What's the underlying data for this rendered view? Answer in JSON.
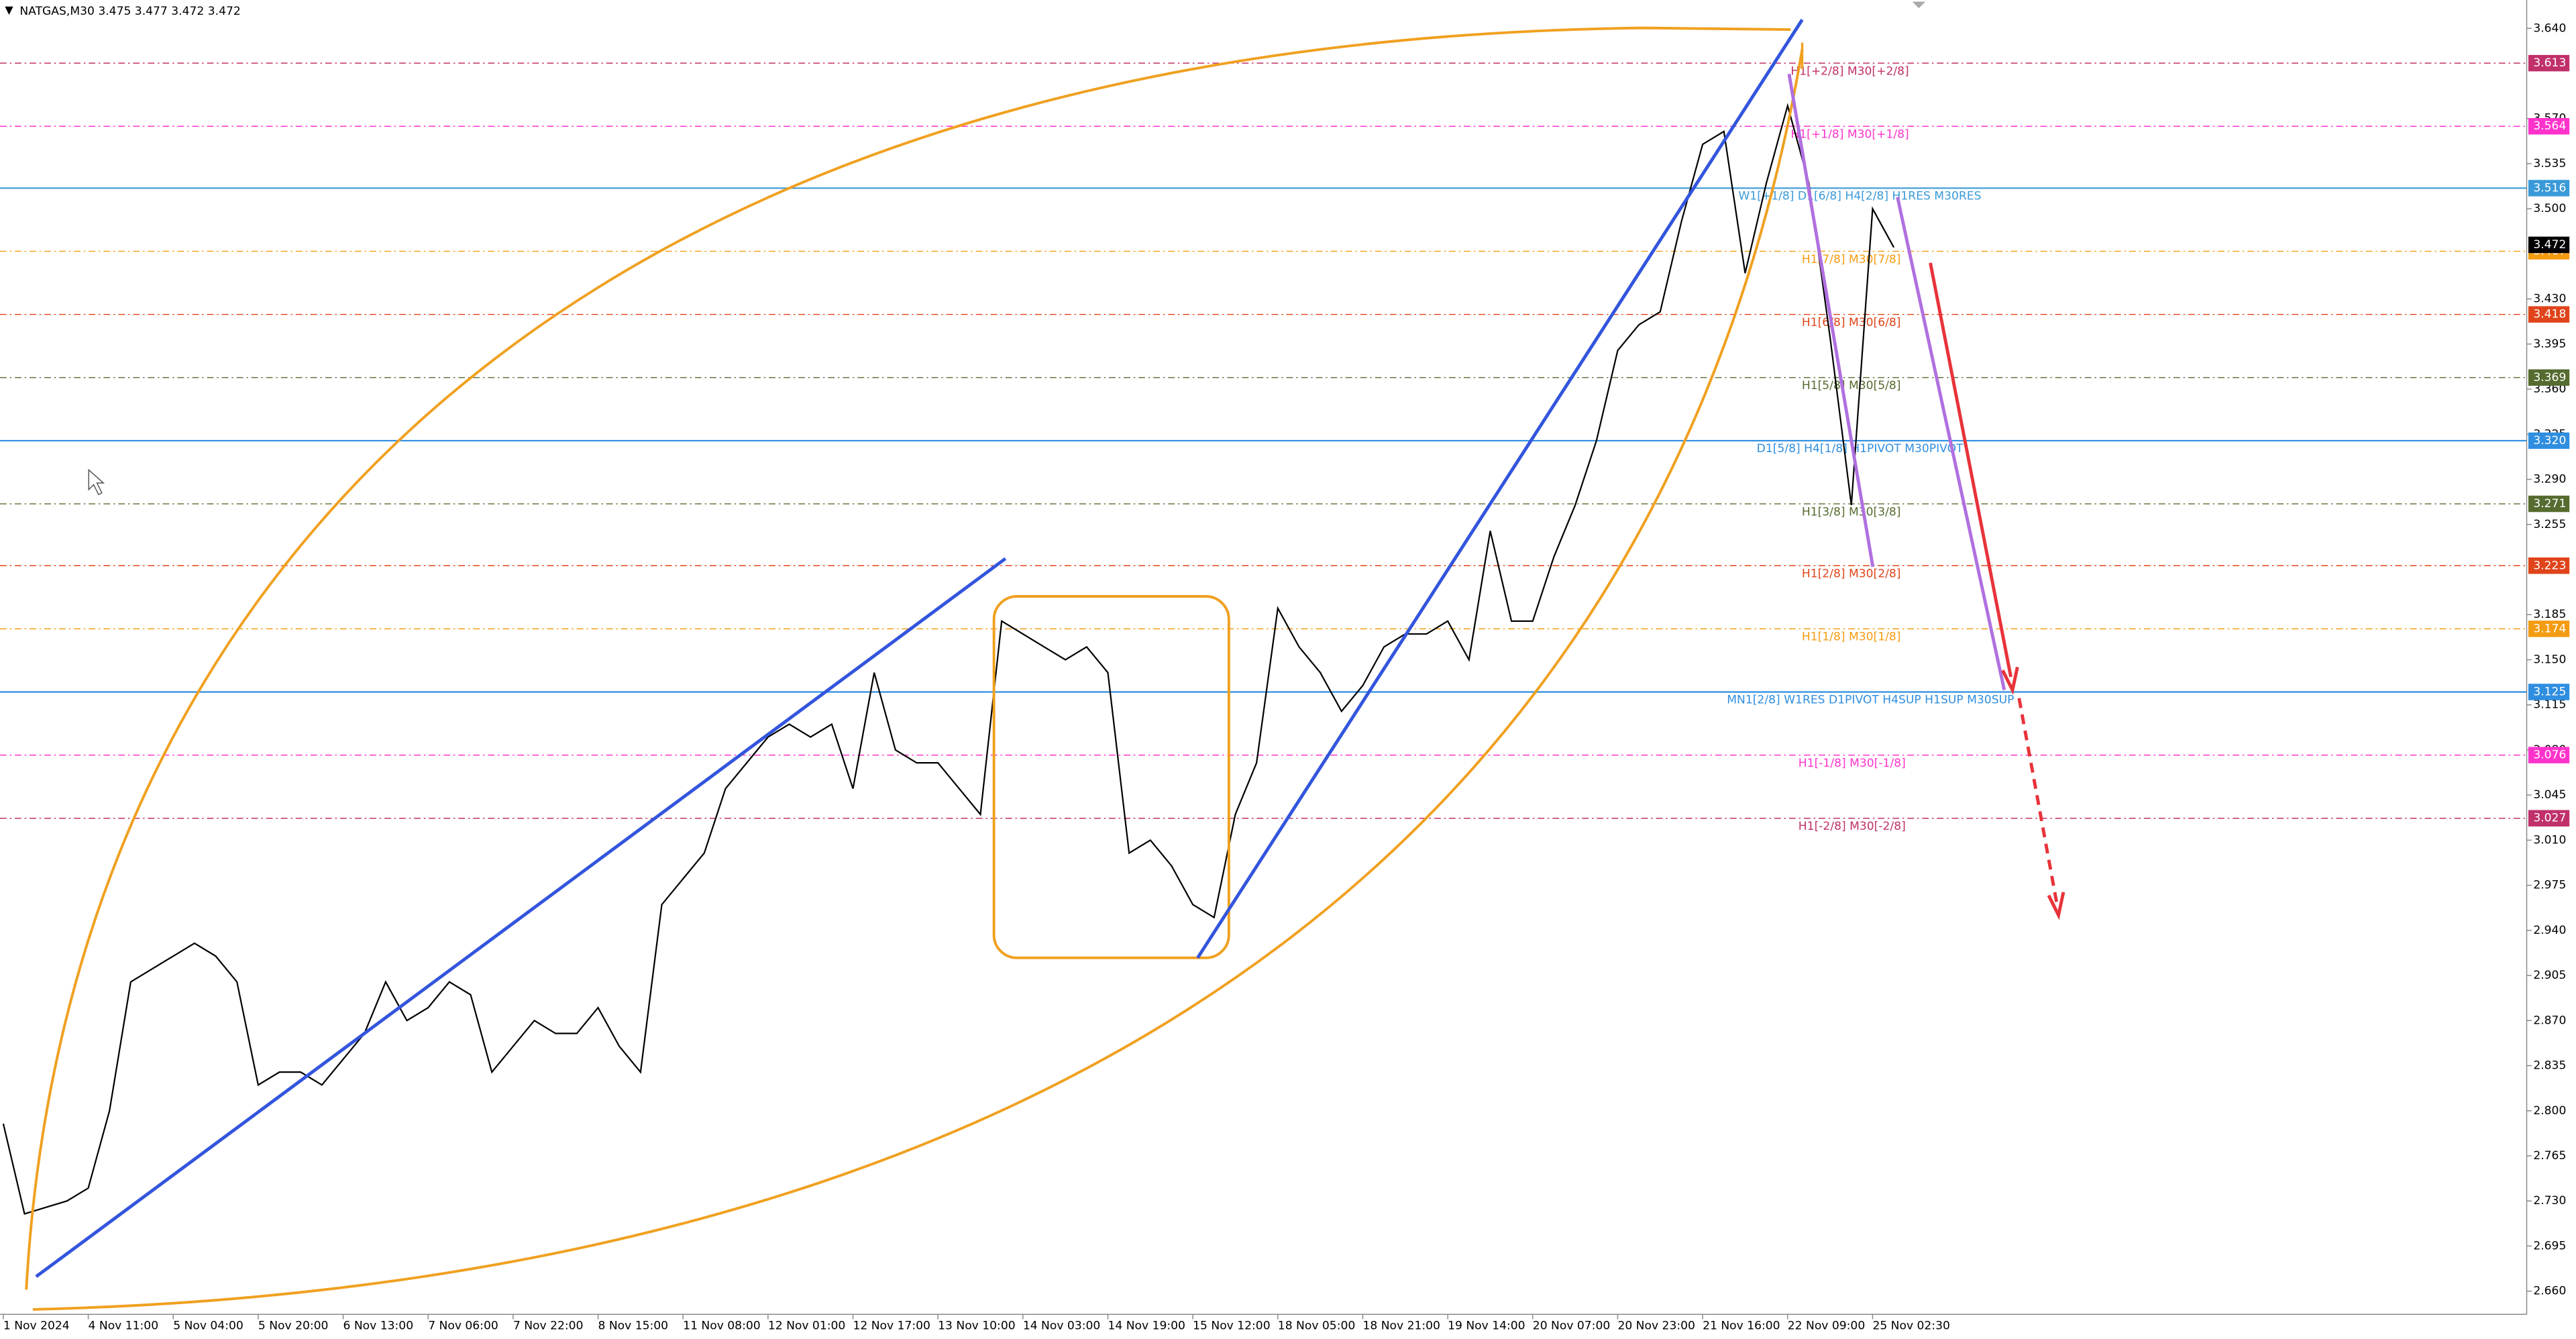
{
  "chart_data": {
    "type": "line",
    "title": "NATGAS,M30  3.475 3.477 3.472 3.472",
    "categories": [
      "1 Nov 2024",
      null,
      null,
      null,
      "4 Nov 11:00",
      null,
      null,
      null,
      "5 Nov 04:00",
      null,
      null,
      null,
      "5 Nov 20:00",
      null,
      null,
      null,
      "6 Nov 13:00",
      null,
      null,
      null,
      "7 Nov 06:00",
      null,
      null,
      null,
      "7 Nov 22:00",
      null,
      null,
      null,
      "8 Nov 15:00",
      null,
      null,
      null,
      "11 Nov 08:00",
      null,
      null,
      null,
      "12 Nov 01:00",
      null,
      null,
      null,
      "12 Nov 17:00",
      null,
      null,
      null,
      "13 Nov 10:00",
      null,
      null,
      null,
      "14 Nov 03:00",
      null,
      null,
      null,
      "14 Nov 19:00",
      null,
      null,
      null,
      "15 Nov 12:00",
      null,
      null,
      null,
      "18 Nov 05:00",
      null,
      null,
      null,
      "18 Nov 21:00",
      null,
      null,
      null,
      "19 Nov 14:00",
      null,
      null,
      null,
      "20 Nov 07:00",
      null,
      null,
      null,
      "20 Nov 23:00",
      null,
      null,
      null,
      "21 Nov 16:00",
      null,
      null,
      null,
      "22 Nov 09:00",
      null,
      null,
      null,
      "25 Nov 02:30",
      null
    ],
    "series": [
      {
        "name": "NATGAS,M30",
        "color": "#000000",
        "values": [
          2.79,
          2.72,
          2.725,
          2.73,
          2.74,
          2.8,
          2.9,
          2.91,
          2.92,
          2.93,
          2.92,
          2.9,
          2.82,
          2.83,
          2.83,
          2.82,
          2.84,
          2.86,
          2.9,
          2.87,
          2.88,
          2.9,
          2.89,
          2.83,
          2.85,
          2.87,
          2.86,
          2.86,
          2.88,
          2.85,
          2.83,
          2.96,
          2.98,
          3.0,
          3.05,
          3.07,
          3.09,
          3.1,
          3.09,
          3.1,
          3.05,
          3.14,
          3.08,
          3.07,
          3.07,
          3.05,
          3.03,
          3.18,
          3.17,
          3.16,
          3.15,
          3.16,
          3.14,
          3.0,
          3.01,
          2.99,
          2.96,
          2.95,
          3.03,
          3.07,
          3.19,
          3.16,
          3.14,
          3.11,
          3.13,
          3.16,
          3.17,
          3.17,
          3.18,
          3.15,
          3.25,
          3.18,
          3.18,
          3.23,
          3.27,
          3.32,
          3.39,
          3.41,
          3.42,
          3.49,
          3.55,
          3.56,
          3.45,
          3.52,
          3.58,
          3.52,
          3.4,
          3.27,
          3.5,
          3.47
        ]
      }
    ],
    "ylim": [
      2.642,
      3.662
    ],
    "yticks": [
      {
        "value": 3.64,
        "label": "3.640"
      },
      {
        "value": 3.57,
        "label": "3.570"
      },
      3.535,
      {
        "value": 3.5,
        "label": "3.500"
      },
      {
        "value": 3.43,
        "label": "3.430"
      },
      3.395,
      {
        "value": 3.36,
        "label": "3.360"
      },
      3.325,
      {
        "value": 3.29,
        "label": "3.290"
      },
      3.255,
      3.185,
      {
        "value": 3.15,
        "label": "3.150"
      },
      3.115,
      {
        "value": 3.08,
        "label": "3.080"
      },
      3.045,
      {
        "value": 3.01,
        "label": "3.010"
      },
      2.975,
      {
        "value": 2.94,
        "label": "2.940"
      },
      2.905,
      {
        "value": 2.87,
        "label": "2.870"
      },
      2.835,
      {
        "value": 2.8,
        "label": "2.800"
      },
      2.765,
      {
        "value": 2.73,
        "label": "2.730"
      },
      2.695,
      {
        "value": 2.66,
        "label": "2.660"
      }
    ],
    "grid": false,
    "levels": [
      {
        "value": 3.613,
        "label": "3.613",
        "text": "H1[+2/8] M30[+2/8]",
        "color": "#c0306a",
        "style": "dashdot"
      },
      {
        "value": 3.564,
        "label": "3.564",
        "text": "H1[+1/8] M30[+1/8]",
        "color": "#ff33cc",
        "style": "dashdot"
      },
      {
        "value": 3.516,
        "label": "3.516",
        "text": "W1[+1/8] D1[6/8] H4[2/8] H1RES M30RES",
        "color": "#3a9ad9",
        "style": "solid"
      },
      {
        "value": 3.467,
        "label": "3.467",
        "text": "H1[7/8] M30[7/8]",
        "color": "#f39c12",
        "style": "dashdot"
      },
      {
        "value": 3.418,
        "label": "3.418",
        "text": "H1[6/8] M30[6/8]",
        "color": "#e0441a",
        "style": "dashdot"
      },
      {
        "value": 3.369,
        "label": "3.369",
        "text": "H1[5/8] M30[5/8]",
        "color": "#556b2f",
        "style": "dashdot"
      },
      {
        "value": 3.32,
        "label": "3.320",
        "text": "D1[5/8] H4[1/8] H1PIVOT M30PIVOT",
        "color": "#2f8ee0",
        "style": "solid"
      },
      {
        "value": 3.271,
        "label": "3.271",
        "text": "H1[3/8] M30[3/8]",
        "color": "#556b2f",
        "style": "dashdot"
      },
      {
        "value": 3.223,
        "label": "3.223",
        "text": "H1[2/8] M30[2/8]",
        "color": "#e0441a",
        "style": "dashdot"
      },
      {
        "value": 3.174,
        "label": "3.174",
        "text": "H1[1/8] M30[1/8]",
        "color": "#f39c12",
        "style": "dashdot"
      },
      {
        "value": 3.125,
        "label": "3.125",
        "text": "MN1[2/8] W1RES D1PIVOT H4SUP H1SUP M30SUP",
        "color": "#2f8ee0",
        "style": "solid"
      },
      {
        "value": 3.076,
        "label": "3.076",
        "text": "H1[-1/8] M30[-1/8]",
        "color": "#ff33cc",
        "style": "dashdot"
      },
      {
        "value": 3.027,
        "label": "3.027",
        "text": "H1[-2/8] M30[-2/8]",
        "color": "#c0306a",
        "style": "dashdot"
      }
    ],
    "current_price": {
      "value": 3.472,
      "label": "3.472",
      "color": "#000000"
    }
  }
}
